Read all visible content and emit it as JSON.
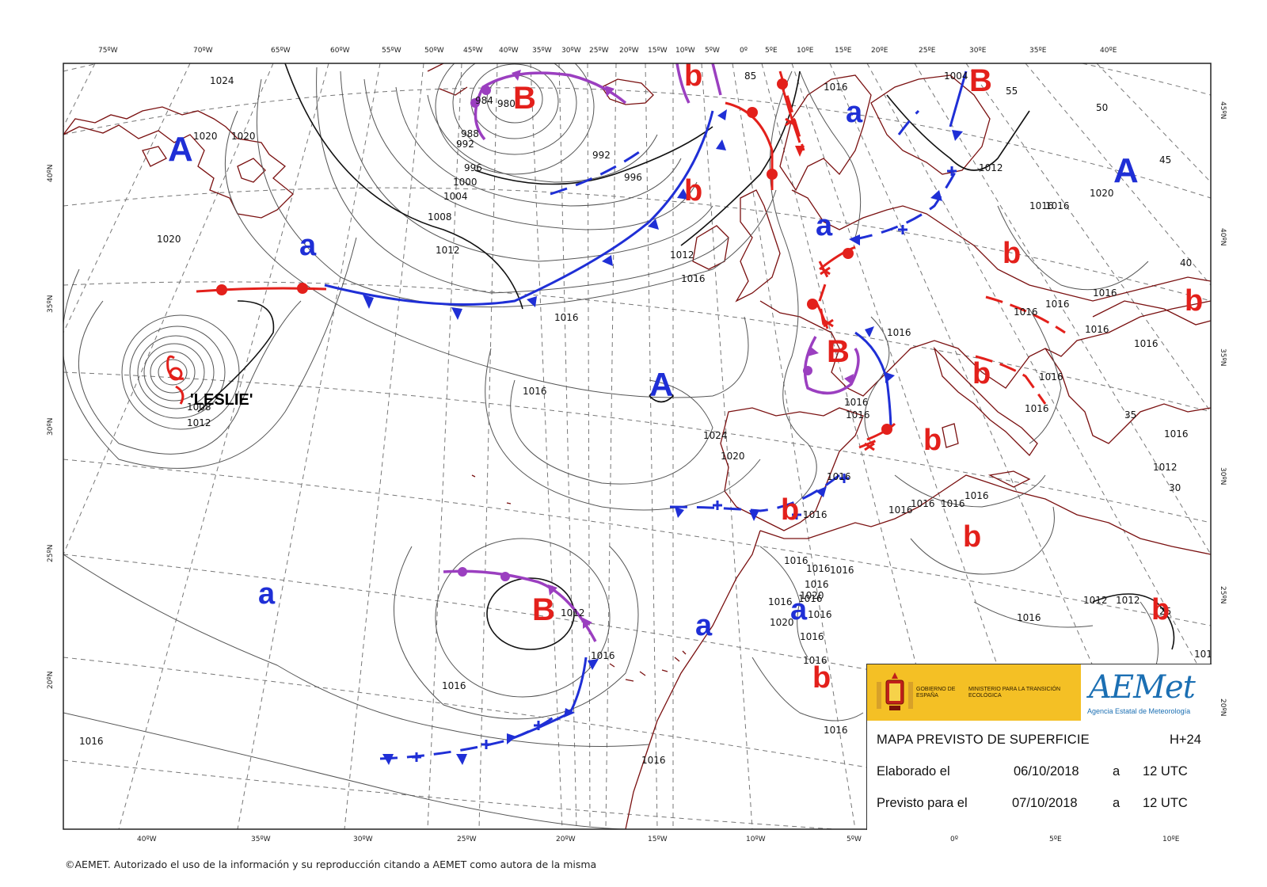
{
  "map": {
    "lon_labels_top": [
      "75ºW",
      "70ºW",
      "65ºW",
      "60ºW",
      "55ºW",
      "50ºW",
      "45ºW",
      "40ºW",
      "35ºW",
      "30ºW",
      "25ºW",
      "20ºW",
      "15ºW",
      "10ºW",
      "5ºW",
      "0º",
      "5ºE",
      "10ºE",
      "15ºE",
      "20ºE",
      "25ºE",
      "30ºE",
      "35ºE",
      "40ºE"
    ],
    "lon_labels_bottom": [
      "40ºW",
      "35ºW",
      "30ºW",
      "25ºW",
      "20ºW",
      "15ºW",
      "10ºW",
      "5ºW",
      "0º",
      "5ºE",
      "10ºE"
    ],
    "lat_labels_left": [
      "40ºN",
      "35ºN",
      "30ºN",
      "25ºN",
      "20ºN"
    ],
    "lat_labels_right": [
      "45ºN",
      "40ºN",
      "35ºN",
      "30ºN",
      "25ºN",
      "20ºN"
    ],
    "pressure_centers": [
      {
        "type": "high",
        "letter": "A"
      },
      {
        "type": "high",
        "letter": "A"
      },
      {
        "type": "high",
        "letter": "A"
      },
      {
        "type": "low",
        "letter": "B"
      },
      {
        "type": "low",
        "letter": "B"
      },
      {
        "type": "low",
        "letter": "B"
      },
      {
        "type": "low",
        "letter": "B"
      },
      {
        "type": "rel_high",
        "letter": "a"
      },
      {
        "type": "rel_high",
        "letter": "a"
      },
      {
        "type": "rel_high",
        "letter": "a"
      },
      {
        "type": "rel_high",
        "letter": "a"
      },
      {
        "type": "rel_high",
        "letter": "a"
      },
      {
        "type": "rel_high",
        "letter": "a"
      },
      {
        "type": "rel_low",
        "letter": "b"
      },
      {
        "type": "rel_low",
        "letter": "b"
      },
      {
        "type": "rel_low",
        "letter": "b"
      },
      {
        "type": "rel_low",
        "letter": "b"
      },
      {
        "type": "rel_low",
        "letter": "b"
      },
      {
        "type": "rel_low",
        "letter": "b"
      },
      {
        "type": "rel_low",
        "letter": "b"
      },
      {
        "type": "rel_low",
        "letter": "b"
      },
      {
        "type": "rel_low",
        "letter": "b"
      },
      {
        "type": "rel_low",
        "letter": "b"
      }
    ],
    "storm_name": "'LESLIE'",
    "isobar_labels": [
      "1024",
      "1020",
      "1020",
      "1020",
      "1012",
      "1008",
      "1004",
      "1000",
      "996",
      "996",
      "992",
      "992",
      "988",
      "984",
      "980",
      "1016",
      "1016",
      "1016",
      "1016",
      "1016",
      "1016",
      "1016",
      "1024",
      "1020",
      "1016",
      "1016",
      "1012",
      "1012",
      "1012",
      "1012",
      "1008",
      "1004",
      "1012",
      "1016",
      "1016",
      "1016",
      "1016",
      "1016",
      "1016",
      "1016",
      "1016",
      "1016",
      "1016",
      "1016",
      "1016",
      "1016",
      "1016",
      "1016",
      "1016",
      "1016",
      "1012",
      "1012",
      "1016",
      "1016",
      "1016",
      "1016",
      "1020",
      "1020",
      "1016",
      "1016",
      "1016",
      "1016",
      "101",
      "1016",
      "1020",
      "1016",
      "1016",
      "1016",
      "85",
      "55",
      "50",
      "45",
      "40",
      "35",
      "30",
      "25"
    ]
  },
  "colors": {
    "warm_front": "#e3201b",
    "cold_front": "#1f2fd6",
    "occluded_front": "#9b3fc0",
    "coastline": "#7a1010",
    "high_letter": "#1f2fd6",
    "low_letter": "#e3201b",
    "banner": "#f4c025"
  },
  "info_box": {
    "gobierno": "GOBIERNO DE ESPAÑA",
    "ministerio": "MINISTERIO PARA LA TRANSICIÓN ECOLÓGICA",
    "logo_name": "AEMet",
    "logo_sub": "Agencia Estatal de Meteorología",
    "title": "MAPA PREVISTO DE SUPERFICIE",
    "forecast_step": "H+24",
    "elaborado_label": "Elaborado el",
    "elaborado_date": "06/10/2018",
    "a1": "a",
    "elaborado_time": "12 UTC",
    "previsto_label": "Previsto para el",
    "previsto_date": "07/10/2018",
    "a2": "a",
    "previsto_time": "12 UTC"
  },
  "copyright": "©AEMET. Autorizado el uso de la información y su reproducción citando a AEMET como autora de la misma"
}
